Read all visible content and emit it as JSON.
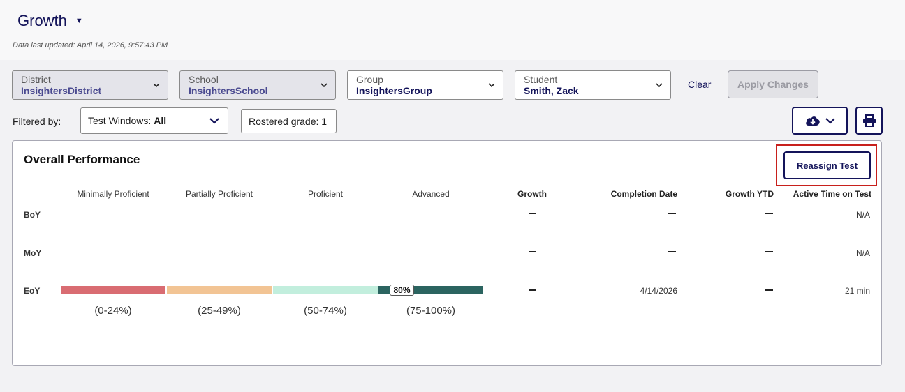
{
  "header": {
    "title": "Growth",
    "last_updated": "Data last updated: April 14, 2026, 9:57:43 PM"
  },
  "filters": {
    "district": {
      "label": "District",
      "value": "InsightersDistrict"
    },
    "school": {
      "label": "School",
      "value": "InsightersSchool"
    },
    "group": {
      "label": "Group",
      "value": "InsightersGroup"
    },
    "student": {
      "label": "Student",
      "value": "Smith, Zack"
    },
    "clear_label": "Clear",
    "apply_label": "Apply Changes"
  },
  "filtered_by": {
    "label": "Filtered by:",
    "test_windows_prefix": "Test Windows:",
    "test_windows_value": "All",
    "rostered_grade": "Rostered grade: 1"
  },
  "card": {
    "title": "Overall Performance",
    "reassign_label": "Reassign Test",
    "columns": {
      "minimally_proficient": "Minimally Proficient",
      "partially_proficient": "Partially Proficient",
      "proficient": "Proficient",
      "advanced": "Advanced",
      "growth": "Growth",
      "completion_date": "Completion Date",
      "growth_ytd": "Growth YTD",
      "active_time": "Active Time on Test"
    },
    "rows": [
      {
        "label": "BoY",
        "completion_date": "",
        "active_time": "N/A"
      },
      {
        "label": "MoY",
        "completion_date": "",
        "active_time": "N/A"
      },
      {
        "label": "EoY",
        "completion_date": "4/14/2026",
        "active_time": "21 min",
        "score": "80%",
        "score_value": 80
      }
    ],
    "ranges": [
      "(0-24%)",
      "(25-49%)",
      "(50-74%)",
      "(75-100%)"
    ]
  },
  "colors": {
    "brand_navy": "#14145a",
    "minimally": "#d96c72",
    "partially": "#f2c494",
    "proficient": "#c2eedd",
    "advanced": "#2b6460",
    "highlight": "#c8201c"
  }
}
